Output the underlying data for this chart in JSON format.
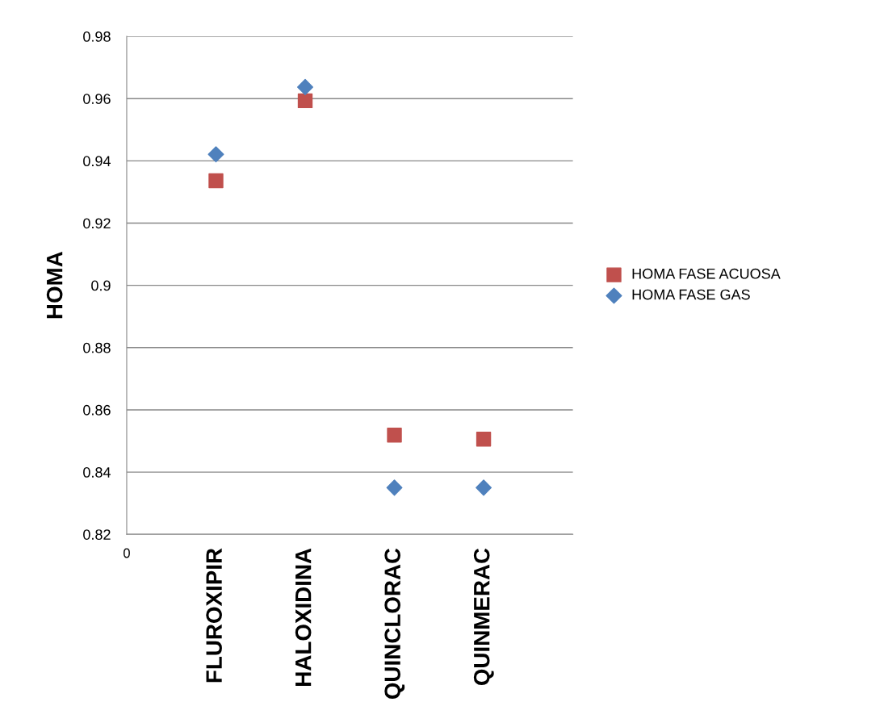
{
  "chart_data": {
    "type": "scatter",
    "ylabel": "HOMA",
    "categories": [
      "FLUROXIPIR",
      "HALOXIDINA",
      "QUINCLORAC",
      "QUINMERAC"
    ],
    "ylim": [
      0.82,
      0.98
    ],
    "yticks": [
      0.82,
      0.84,
      0.86,
      0.88,
      0.9,
      0.92,
      0.94,
      0.96,
      0.98
    ],
    "series": [
      {
        "name": "HOMA FASE ACUOSA",
        "color": "#c0504d",
        "marker": "square",
        "values": [
          0.9336,
          0.9593,
          0.8519,
          0.8506
        ]
      },
      {
        "name": "HOMA FASE GAS",
        "color": "#4f81bd",
        "marker": "diamond",
        "values": [
          0.9421,
          0.9637,
          0.835,
          0.835
        ]
      }
    ],
    "annotations": [
      "0"
    ],
    "grid": "y",
    "legend": "right"
  }
}
